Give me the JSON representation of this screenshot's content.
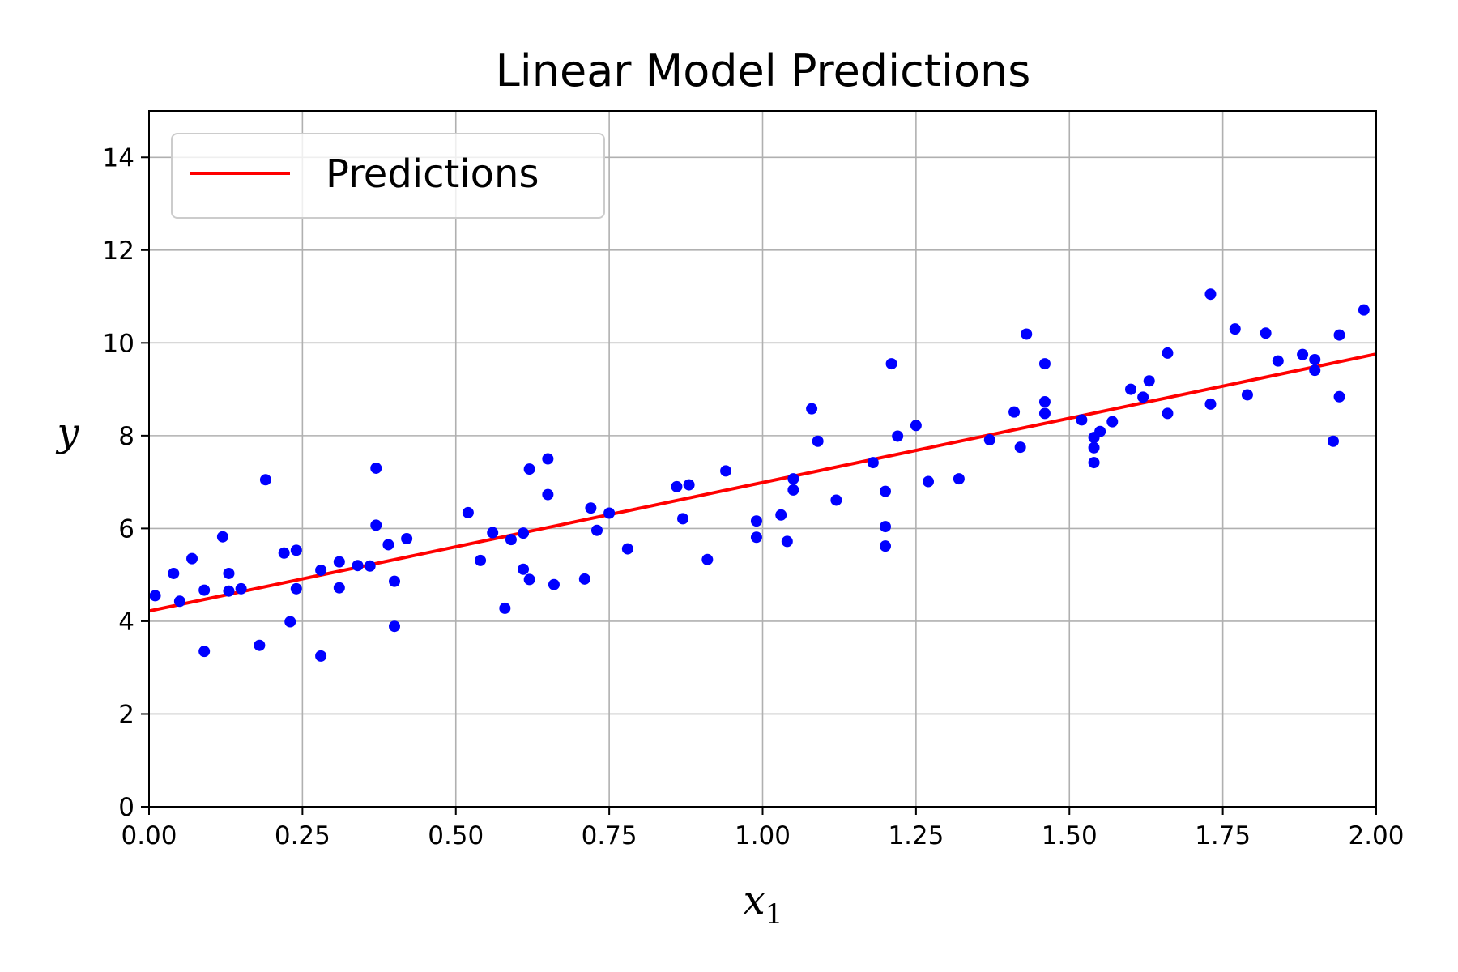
{
  "chart_data": {
    "type": "scatter",
    "title": "Linear Model Predictions",
    "xlabel": "x",
    "xlabel_subscript": "1",
    "ylabel": "y",
    "xlim": [
      0,
      2
    ],
    "ylim": [
      0,
      15
    ],
    "xticks": [
      0,
      0.25,
      0.5,
      0.75,
      1.0,
      1.25,
      1.5,
      1.75,
      2.0
    ],
    "xtick_labels": [
      "0.00",
      "0.25",
      "0.50",
      "0.75",
      "1.00",
      "1.25",
      "1.50",
      "1.75",
      "2.00"
    ],
    "yticks": [
      0,
      2,
      4,
      6,
      8,
      10,
      12,
      14
    ],
    "ytick_labels": [
      "0",
      "2",
      "4",
      "6",
      "8",
      "10",
      "12",
      "14"
    ],
    "grid": true,
    "legend": {
      "placement": "top-left",
      "entries": [
        "Predictions"
      ]
    },
    "series": [
      {
        "name": "Predictions",
        "kind": "line",
        "color": "#ff0000",
        "x": [
          0,
          2
        ],
        "y": [
          4.22,
          9.76
        ]
      },
      {
        "kind": "scatter",
        "color": "#0000ff",
        "x": [
          0.01,
          0.04,
          0.05,
          0.07,
          0.09,
          0.09,
          0.12,
          0.13,
          0.13,
          0.15,
          0.18,
          0.19,
          0.22,
          0.23,
          0.24,
          0.24,
          0.28,
          0.28,
          0.31,
          0.31,
          0.34,
          0.36,
          0.37,
          0.37,
          0.39,
          0.4,
          0.4,
          0.42,
          0.52,
          0.54,
          0.56,
          0.58,
          0.59,
          0.61,
          0.61,
          0.62,
          0.62,
          0.65,
          0.65,
          0.66,
          0.71,
          0.72,
          0.73,
          0.75,
          0.78,
          0.86,
          0.87,
          0.88,
          0.91,
          0.94,
          0.99,
          0.99,
          1.03,
          1.04,
          1.05,
          1.05,
          1.08,
          1.09,
          1.12,
          1.18,
          1.2,
          1.2,
          1.2,
          1.21,
          1.22,
          1.25,
          1.27,
          1.32,
          1.37,
          1.41,
          1.42,
          1.43,
          1.46,
          1.46,
          1.46,
          1.52,
          1.54,
          1.54,
          1.54,
          1.55,
          1.57,
          1.6,
          1.62,
          1.63,
          1.66,
          1.66,
          1.73,
          1.73,
          1.77,
          1.79,
          1.82,
          1.84,
          1.88,
          1.9,
          1.9,
          1.93,
          1.94,
          1.94,
          1.98
        ],
        "y": [
          4.55,
          5.03,
          4.43,
          5.35,
          3.35,
          4.67,
          5.82,
          5.03,
          4.65,
          4.7,
          3.48,
          7.05,
          5.47,
          3.99,
          5.53,
          4.7,
          3.25,
          5.1,
          5.28,
          4.72,
          5.2,
          5.19,
          6.07,
          7.3,
          5.65,
          4.86,
          3.89,
          5.78,
          6.34,
          5.31,
          5.91,
          4.28,
          5.76,
          5.9,
          5.12,
          4.9,
          7.28,
          6.73,
          7.5,
          4.79,
          4.91,
          6.44,
          5.96,
          6.33,
          5.56,
          6.9,
          6.21,
          6.94,
          5.33,
          7.24,
          6.16,
          5.81,
          6.29,
          5.72,
          7.07,
          6.83,
          8.58,
          7.88,
          6.61,
          7.42,
          6.04,
          5.62,
          6.8,
          9.55,
          7.99,
          8.22,
          7.01,
          7.07,
          7.91,
          8.51,
          7.75,
          10.19,
          8.73,
          8.48,
          9.55,
          8.34,
          7.96,
          7.74,
          7.42,
          8.09,
          8.3,
          9.0,
          8.83,
          9.18,
          9.78,
          8.48,
          11.05,
          8.68,
          10.3,
          8.88,
          10.21,
          9.61,
          9.75,
          9.64,
          9.41,
          7.88,
          8.84,
          10.17,
          10.71
        ]
      }
    ]
  }
}
